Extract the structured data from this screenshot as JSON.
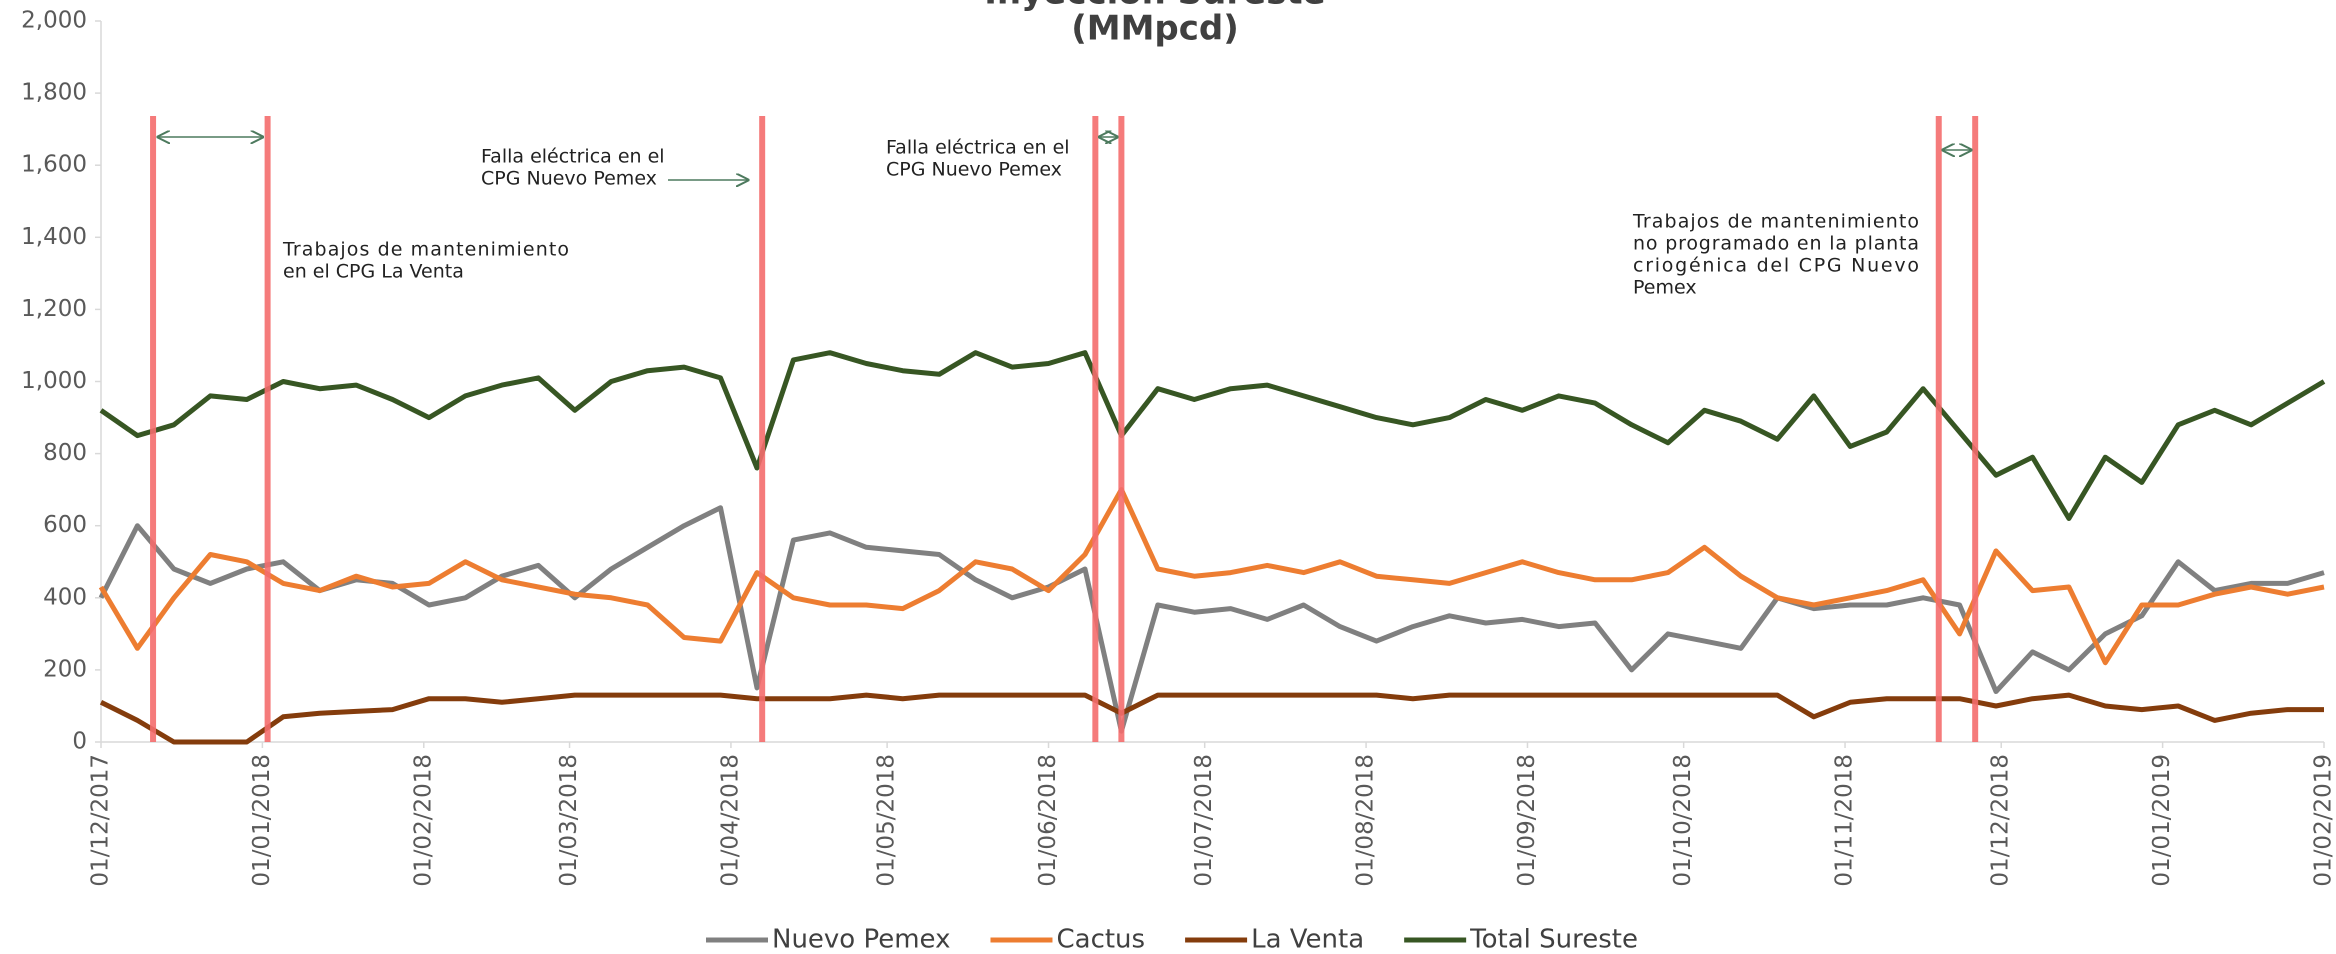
{
  "chart_data": {
    "type": "line",
    "title": [
      "Inyección Sureste",
      "(MMpcd)"
    ],
    "x": [
      "2017-12-01",
      "2017-12-08",
      "2017-12-15",
      "2017-12-22",
      "2017-12-29",
      "2018-01-05",
      "2018-01-12",
      "2018-01-19",
      "2018-01-26",
      "2018-02-02",
      "2018-02-09",
      "2018-02-16",
      "2018-02-23",
      "2018-03-02",
      "2018-03-09",
      "2018-03-16",
      "2018-03-23",
      "2018-03-30",
      "2018-04-06",
      "2018-04-13",
      "2018-04-20",
      "2018-04-27",
      "2018-05-04",
      "2018-05-11",
      "2018-05-18",
      "2018-05-25",
      "2018-06-01",
      "2018-06-08",
      "2018-06-15",
      "2018-06-22",
      "2018-06-29",
      "2018-07-06",
      "2018-07-13",
      "2018-07-20",
      "2018-07-27",
      "2018-08-03",
      "2018-08-10",
      "2018-08-17",
      "2018-08-24",
      "2018-08-31",
      "2018-09-07",
      "2018-09-14",
      "2018-09-21",
      "2018-09-28",
      "2018-10-05",
      "2018-10-12",
      "2018-10-19",
      "2018-10-26",
      "2018-11-02",
      "2018-11-09",
      "2018-11-16",
      "2018-11-23",
      "2018-11-30",
      "2018-12-07",
      "2018-12-14",
      "2018-12-21",
      "2018-12-28",
      "2019-01-04",
      "2019-01-11",
      "2019-01-18",
      "2019-01-25",
      "2019-02-01"
    ],
    "series": [
      {
        "name": "Nuevo Pemex",
        "color": "#808080",
        "values": [
          400,
          600,
          480,
          440,
          480,
          500,
          420,
          450,
          440,
          380,
          400,
          460,
          490,
          400,
          480,
          540,
          600,
          650,
          150,
          560,
          580,
          540,
          530,
          520,
          450,
          400,
          430,
          480,
          30,
          380,
          360,
          370,
          340,
          380,
          320,
          280,
          320,
          350,
          330,
          340,
          320,
          330,
          200,
          300,
          280,
          260,
          400,
          370,
          380,
          380,
          400,
          380,
          140,
          250,
          200,
          300,
          350,
          500,
          420,
          440,
          440,
          470
        ]
      },
      {
        "name": "Cactus",
        "color": "#ed7d31",
        "values": [
          430,
          260,
          400,
          520,
          500,
          440,
          420,
          460,
          430,
          440,
          500,
          450,
          430,
          410,
          400,
          380,
          290,
          280,
          470,
          400,
          380,
          380,
          370,
          420,
          500,
          480,
          420,
          520,
          700,
          480,
          460,
          470,
          490,
          470,
          500,
          460,
          450,
          440,
          470,
          500,
          470,
          450,
          450,
          470,
          540,
          460,
          400,
          380,
          400,
          420,
          450,
          300,
          530,
          420,
          430,
          220,
          380,
          380,
          410,
          430,
          410,
          430
        ]
      },
      {
        "name": "La Venta",
        "color": "#843c0c",
        "values": [
          110,
          60,
          0,
          0,
          0,
          70,
          80,
          85,
          90,
          120,
          120,
          110,
          120,
          130,
          130,
          130,
          130,
          130,
          120,
          120,
          120,
          130,
          120,
          130,
          130,
          130,
          130,
          130,
          80,
          130,
          130,
          130,
          130,
          130,
          130,
          130,
          120,
          130,
          130,
          130,
          130,
          130,
          130,
          130,
          130,
          130,
          130,
          70,
          110,
          120,
          120,
          120,
          100,
          120,
          130,
          100,
          90,
          100,
          60,
          80,
          90,
          90
        ]
      },
      {
        "name": "Total Sureste",
        "color": "#375623",
        "values": [
          920,
          850,
          880,
          960,
          950,
          1000,
          980,
          990,
          950,
          900,
          960,
          990,
          1010,
          920,
          1000,
          1030,
          1040,
          1010,
          760,
          1060,
          1080,
          1050,
          1030,
          1020,
          1080,
          1040,
          1050,
          1080,
          850,
          980,
          950,
          980,
          990,
          960,
          930,
          900,
          880,
          900,
          950,
          920,
          960,
          940,
          880,
          830,
          920,
          890,
          840,
          960,
          820,
          860,
          980,
          860,
          740,
          790,
          620,
          790,
          720,
          880,
          920,
          880,
          940,
          1000
        ]
      }
    ],
    "xlim": [
      "2017-12-01",
      "2019-02-01"
    ],
    "xticks": [
      {
        "value": "2017-12-01",
        "label": "01/12/2017"
      },
      {
        "value": "2018-01-01",
        "label": "01/01/2018"
      },
      {
        "value": "2018-02-01",
        "label": "01/02/2018"
      },
      {
        "value": "2018-03-01",
        "label": "01/03/2018"
      },
      {
        "value": "2018-04-01",
        "label": "01/04/2018"
      },
      {
        "value": "2018-05-01",
        "label": "01/05/2018"
      },
      {
        "value": "2018-06-01",
        "label": "01/06/2018"
      },
      {
        "value": "2018-07-01",
        "label": "01/07/2018"
      },
      {
        "value": "2018-08-01",
        "label": "01/08/2018"
      },
      {
        "value": "2018-09-01",
        "label": "01/09/2018"
      },
      {
        "value": "2018-10-01",
        "label": "01/10/2018"
      },
      {
        "value": "2018-11-01",
        "label": "01/11/2018"
      },
      {
        "value": "2018-12-01",
        "label": "01/12/2018"
      },
      {
        "value": "2019-01-01",
        "label": "01/01/2019"
      },
      {
        "value": "2019-02-01",
        "label": "01/02/2019"
      }
    ],
    "ylim": [
      0,
      2000
    ],
    "yticks": [
      0,
      200,
      400,
      600,
      800,
      {
        "value": 1000,
        "label": "1,000"
      },
      {
        "value": 1200,
        "label": "1,200"
      },
      {
        "value": 1400,
        "label": "1,400"
      },
      {
        "value": 1600,
        "label": "1,600"
      },
      {
        "value": 1800,
        "label": "1,800"
      },
      {
        "value": 2000,
        "label": "2,000"
      }
    ],
    "event_lines": [
      "2017-12-11",
      "2018-01-02",
      "2018-04-07",
      "2018-06-10",
      "2018-06-15",
      "2018-11-19",
      "2018-11-26"
    ],
    "event_color": "#f46d6d",
    "annotations": [
      {
        "lines": [
          "Trabajos de mantenimiento",
          "en el CPG La Venta"
        ]
      },
      {
        "lines": [
          "Falla eléctrica en el",
          "CPG Nuevo Pemex"
        ]
      },
      {
        "lines": [
          "Falla eléctrica en el",
          "CPG Nuevo Pemex"
        ]
      },
      {
        "lines": [
          "Trabajos de mantenimiento",
          "no programado en la planta",
          "criogénica del CPG Nuevo",
          "Pemex"
        ]
      }
    ],
    "legend": "bottom"
  }
}
